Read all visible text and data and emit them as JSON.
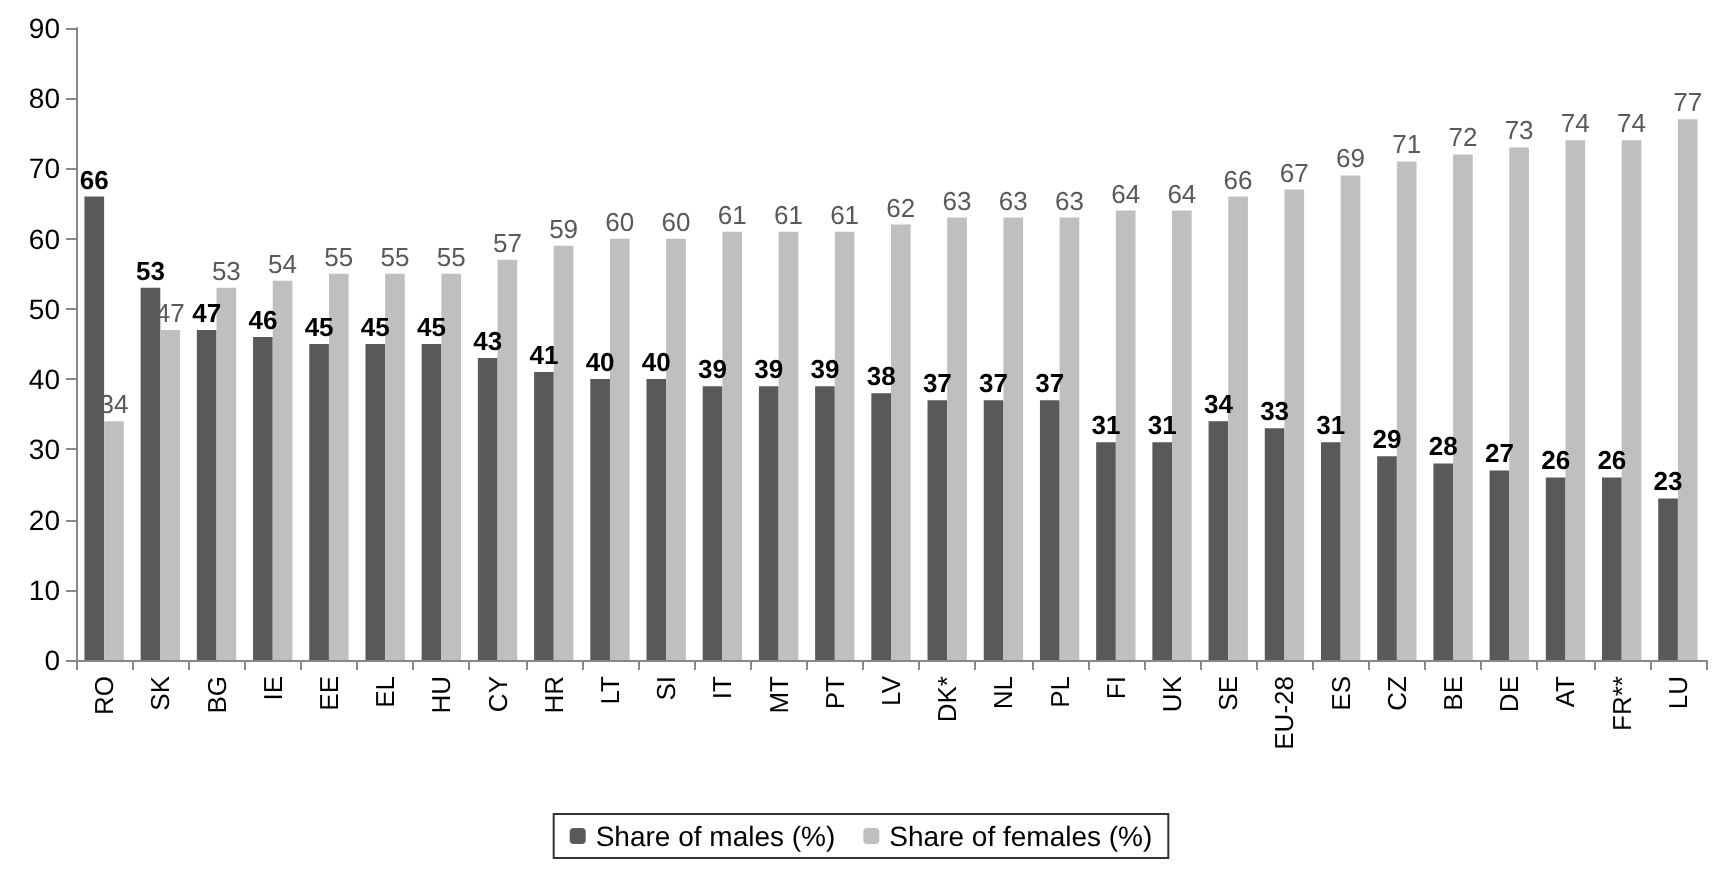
{
  "chart_data": {
    "type": "bar",
    "categories": [
      "RO",
      "SK",
      "BG",
      "IE",
      "EE",
      "EL",
      "HU",
      "CY",
      "HR",
      "LT",
      "SI",
      "IT",
      "MT",
      "PT",
      "LV",
      "DK*",
      "NL",
      "PL",
      "FI",
      "UK",
      "SE",
      "EU-28",
      "ES",
      "CZ",
      "BE",
      "DE",
      "AT",
      "FR**",
      "LU"
    ],
    "series": [
      {
        "name": "Share of males (%)",
        "color": "#595959",
        "values": [
          66,
          53,
          47,
          46,
          45,
          45,
          45,
          43,
          41,
          40,
          40,
          39,
          39,
          39,
          38,
          37,
          37,
          37,
          31,
          31,
          34,
          33,
          31,
          29,
          28,
          27,
          26,
          26,
          23
        ]
      },
      {
        "name": "Share of females (%)",
        "color": "#bfbfbf",
        "values": [
          34,
          47,
          53,
          54,
          55,
          55,
          55,
          57,
          59,
          60,
          60,
          61,
          61,
          61,
          62,
          63,
          63,
          63,
          64,
          64,
          66,
          67,
          69,
          71,
          72,
          73,
          74,
          74,
          77
        ]
      }
    ],
    "ylim": [
      0,
      90
    ],
    "yticks": [
      0,
      10,
      20,
      30,
      40,
      50,
      60,
      70,
      80,
      90
    ],
    "grid": false,
    "legend": "bottom",
    "data_labels": true
  }
}
